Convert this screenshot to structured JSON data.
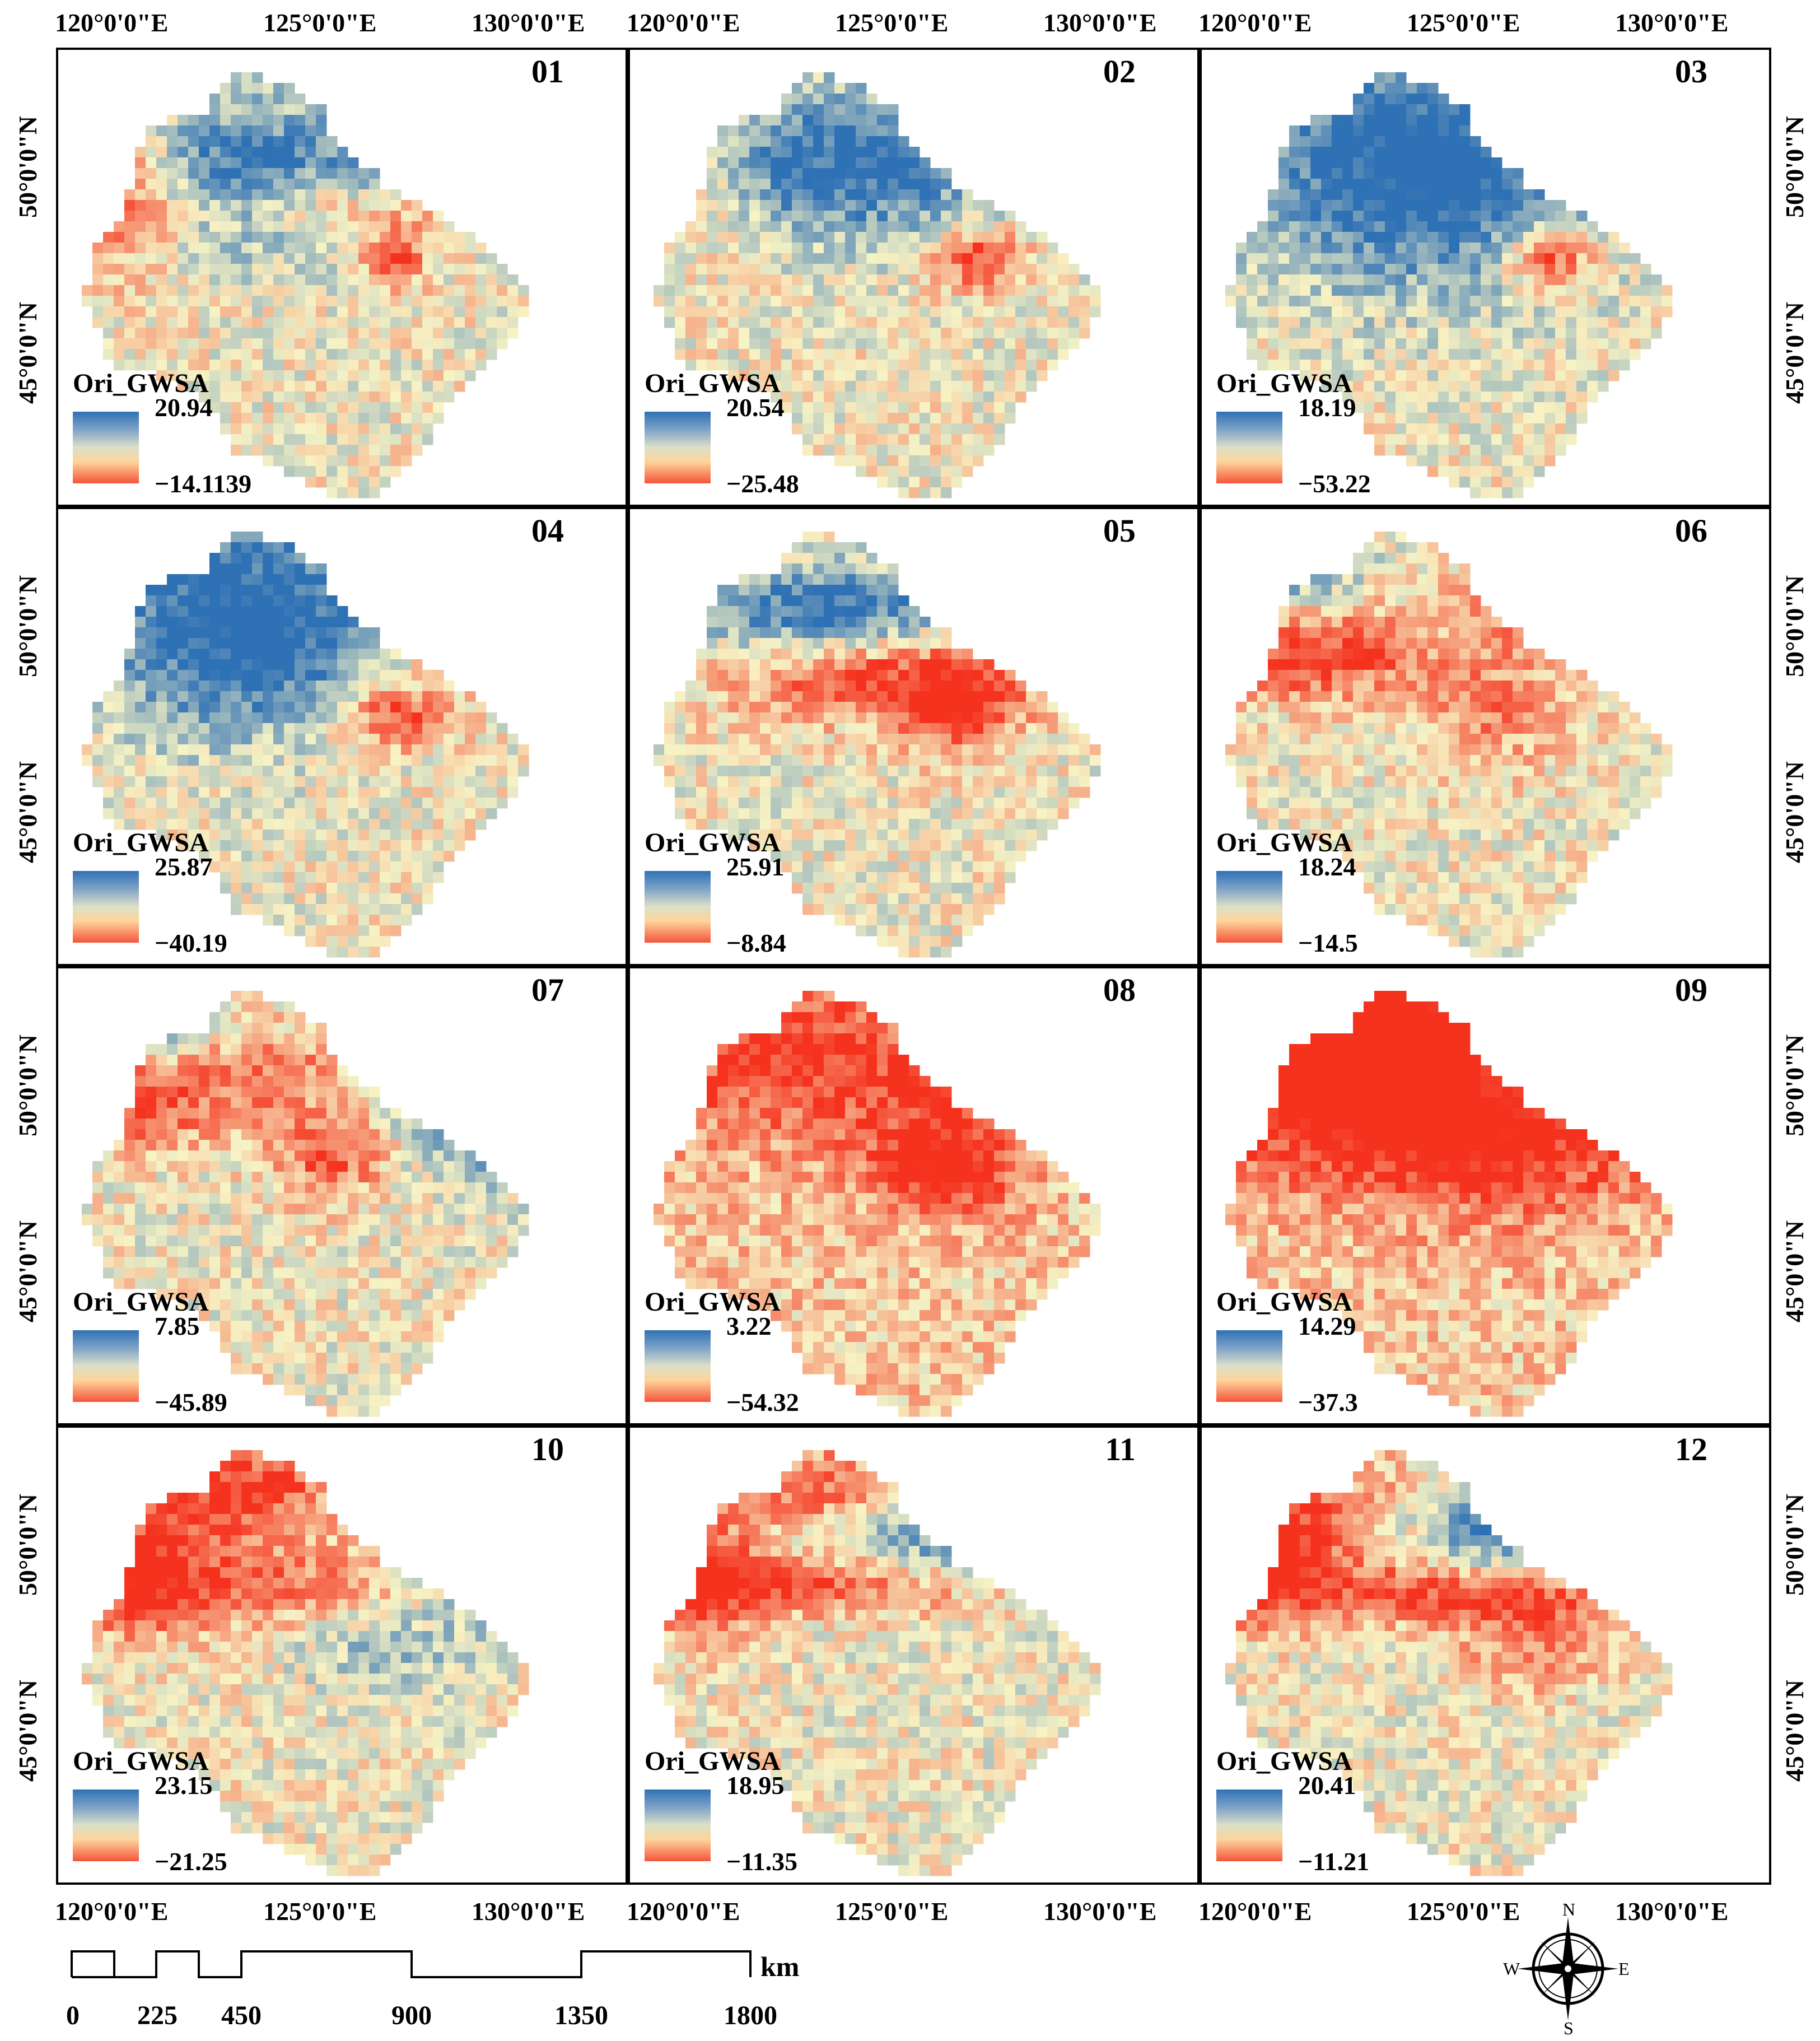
{
  "variable_name": "Ori_GWSA",
  "longitude_labels": [
    "120°0'0\"E",
    "125°0'0\"E",
    "130°0'0\"E"
  ],
  "latitude_labels": [
    "50°0'0\"N",
    "45°0'0\"N"
  ],
  "colors": {
    "high": "#2f71b5",
    "mid": "#f7f3c4",
    "low": "#f5321e"
  },
  "panels": [
    {
      "month": "01",
      "max": "20.94",
      "min": "−14.1139"
    },
    {
      "month": "02",
      "max": "20.54",
      "min": "−25.48"
    },
    {
      "month": "03",
      "max": "18.19",
      "min": "−53.22"
    },
    {
      "month": "04",
      "max": "25.87",
      "min": "−40.19"
    },
    {
      "month": "05",
      "max": "25.91",
      "min": "−8.84"
    },
    {
      "month": "06",
      "max": "18.24",
      "min": "−14.5"
    },
    {
      "month": "07",
      "max": "7.85",
      "min": "−45.89"
    },
    {
      "month": "08",
      "max": "3.22",
      "min": "−54.32"
    },
    {
      "month": "09",
      "max": "14.29",
      "min": "−37.3"
    },
    {
      "month": "10",
      "max": "23.15",
      "min": "−21.25"
    },
    {
      "month": "11",
      "max": "18.95",
      "min": "−11.35"
    },
    {
      "month": "12",
      "max": "20.41",
      "min": "−11.21"
    }
  ],
  "scale_bar": {
    "ticks": [
      "0",
      "225",
      "450",
      "900",
      "1350",
      "1800"
    ],
    "unit": "km"
  },
  "compass": {
    "n": "N",
    "s": "S",
    "e": "E",
    "w": "W"
  }
}
